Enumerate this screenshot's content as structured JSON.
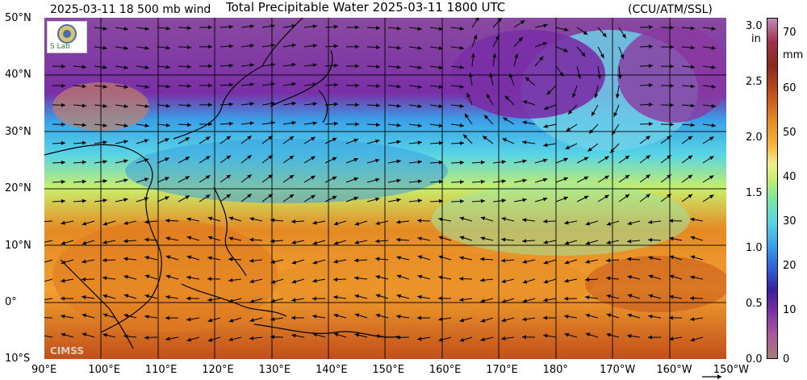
{
  "header": {
    "left_title": "2025-03-11 18 500 mb wind",
    "center_title": "Total Precipitable Water  2025-03-11 1800 UTC",
    "right_title": "(CCU/ATM/SSL)"
  },
  "map": {
    "latitude_labels": [
      "50°N",
      "40°N",
      "30°N",
      "20°N",
      "10°N",
      "0°",
      "10°S"
    ],
    "longitude_labels": [
      "90°E",
      "100°E",
      "110°E",
      "120°E",
      "130°E",
      "140°E",
      "150°E",
      "160°E",
      "170°E",
      "180°",
      "170°W",
      "160°W",
      "150°W"
    ],
    "watermark": "CIMSS",
    "logo_text": "S Lab"
  },
  "colorbar": {
    "inch_ticks": [
      "3.0",
      "2.5",
      "2.0",
      "1.5",
      "1.0",
      "0.5",
      "0.0"
    ],
    "inch_unit": "in",
    "mm_ticks": [
      "70",
      "60",
      "50",
      "40",
      "30",
      "20",
      "10",
      "0"
    ],
    "mm_unit": "mm",
    "colors": [
      "#a87b78",
      "#7a2fa6",
      "#2d5bd6",
      "#57d4e6",
      "#c8ee6a",
      "#f6b23a",
      "#c24e1a",
      "#8a2a1c",
      "#c48ab8"
    ]
  }
}
